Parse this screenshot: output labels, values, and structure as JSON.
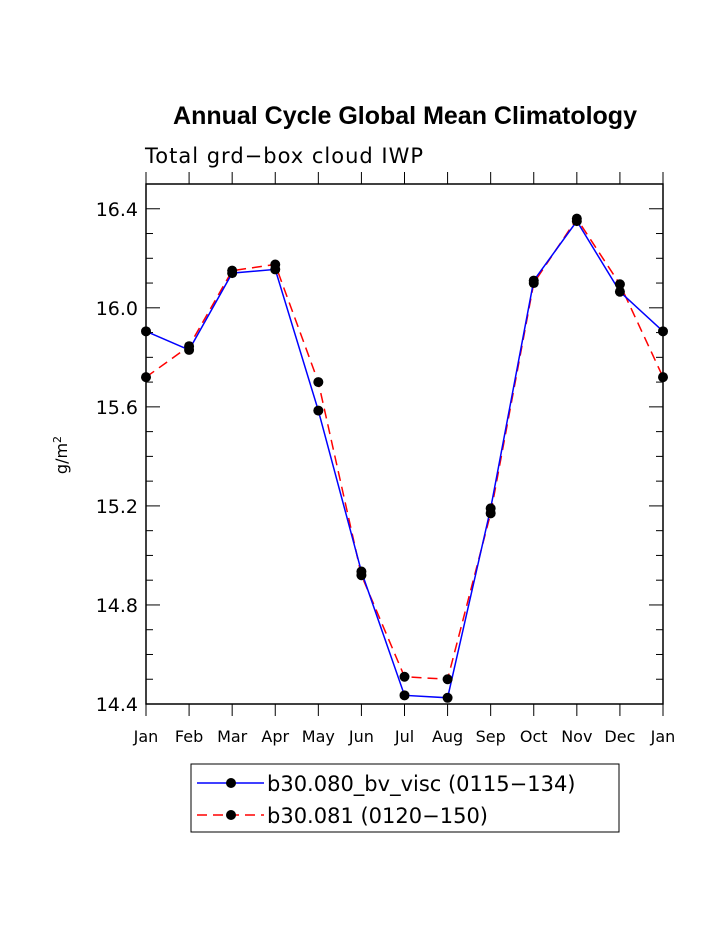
{
  "chart_data": {
    "type": "line",
    "title": "Annual Cycle Global Mean Climatology",
    "subtitle": "Total grd−box cloud IWP",
    "xlabel": "",
    "ylabel": "g/m",
    "ylabel_superscript": "2",
    "categories": [
      "Jan",
      "Feb",
      "Mar",
      "Apr",
      "May",
      "Jun",
      "Jul",
      "Aug",
      "Sep",
      "Oct",
      "Nov",
      "Dec",
      "Jan"
    ],
    "ylim": [
      14.4,
      16.5
    ],
    "yticks": [
      14.4,
      14.8,
      15.2,
      15.6,
      16.0,
      16.4
    ],
    "ytick_labels": [
      "14.4",
      "14.8",
      "15.2",
      "15.6",
      "16.0",
      "16.4"
    ],
    "series": [
      {
        "name": "b30.080_bv_visc (0115−134)",
        "color": "#0000ff",
        "dash": "solid",
        "values": [
          15.905,
          15.83,
          16.14,
          16.155,
          15.585,
          14.935,
          14.435,
          14.425,
          15.19,
          16.11,
          16.35,
          16.065,
          15.905
        ]
      },
      {
        "name": "b30.081 (0120−150)",
        "color": "#ff0000",
        "dash": "dashed",
        "values": [
          15.72,
          15.845,
          16.15,
          16.175,
          15.7,
          14.92,
          14.51,
          14.5,
          15.17,
          16.1,
          16.36,
          16.095,
          15.72
        ]
      }
    ]
  }
}
